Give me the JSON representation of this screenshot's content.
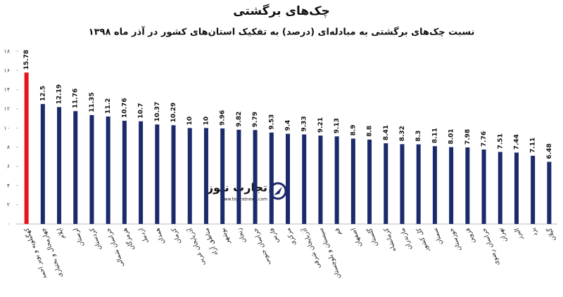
{
  "chart_data": {
    "type": "bar",
    "title": "چک‌های برگشتی",
    "subtitle": "نسبت چک‌های برگشتی به مبادله‌ای (درصد) به تفکیک استان‌های کشور در آذر ماه ۱۳۹۸",
    "categories": [
      "کهگیلویه و بویر احمد",
      "چهارمحال و بختیاری",
      "ایلام",
      "لرستان",
      "کردستان",
      "خراسان شمالی",
      "هرمزگان",
      "اردبیل",
      "همدان",
      "کرمان",
      "آذربایجان غربی",
      "مناطق آزاد",
      "بوشهر",
      "زنجان",
      "خراسان جنوبی",
      "فارس",
      "مرکزی",
      "آذربایجان شرقی",
      "سیستان و بلوچستان",
      "قم",
      "اصفهان",
      "گلستان",
      "کرمانشاه",
      "مازندران",
      "کل کشور",
      "سمنان",
      "خوزستان",
      "قزوین",
      "خراسان رضوی",
      "تهران",
      "البرز",
      "یزد",
      "گیلان"
    ],
    "values": [
      15.78,
      12.5,
      12.19,
      11.76,
      11.35,
      11.2,
      10.76,
      10.7,
      10.37,
      10.29,
      10,
      10,
      9.96,
      9.82,
      9.79,
      9.53,
      9.4,
      9.33,
      9.21,
      9.13,
      8.9,
      8.8,
      8.41,
      8.32,
      8.3,
      8.11,
      8.01,
      7.98,
      7.76,
      7.51,
      7.44,
      7.11,
      6.48
    ],
    "colors": [
      "#e8141c",
      "#1b2a6b",
      "#1b2a6b",
      "#1b2a6b",
      "#1b2a6b",
      "#1b2a6b",
      "#1b2a6b",
      "#1b2a6b",
      "#1b2a6b",
      "#1b2a6b",
      "#1b2a6b",
      "#1b2a6b",
      "#1b2a6b",
      "#1b2a6b",
      "#1b2a6b",
      "#1b2a6b",
      "#1b2a6b",
      "#1b2a6b",
      "#1b2a6b",
      "#1b2a6b",
      "#1b2a6b",
      "#1b2a6b",
      "#1b2a6b",
      "#1b2a6b",
      "#1b2a6b",
      "#1b2a6b",
      "#1b2a6b",
      "#1b2a6b",
      "#1b2a6b",
      "#1b2a6b",
      "#1b2a6b",
      "#1b2a6b",
      "#1b2a6b"
    ],
    "ylim": [
      0,
      18
    ],
    "yticks": [
      {
        "value": 0,
        "label": "۰"
      },
      {
        "value": 2,
        "label": "۲"
      },
      {
        "value": 4,
        "label": "۴"
      },
      {
        "value": 6,
        "label": "۶"
      },
      {
        "value": 8,
        "label": "۸"
      },
      {
        "value": 10,
        "label": "۱۰"
      },
      {
        "value": 12,
        "label": "۱۲"
      },
      {
        "value": 14,
        "label": "۱۴"
      },
      {
        "value": 16,
        "label": "۱۶"
      },
      {
        "value": 18,
        "label": "۱۸"
      }
    ],
    "grid": false,
    "watermark": {
      "name": "تجارت نیوز",
      "url": "www.tejaratnews.com"
    }
  }
}
